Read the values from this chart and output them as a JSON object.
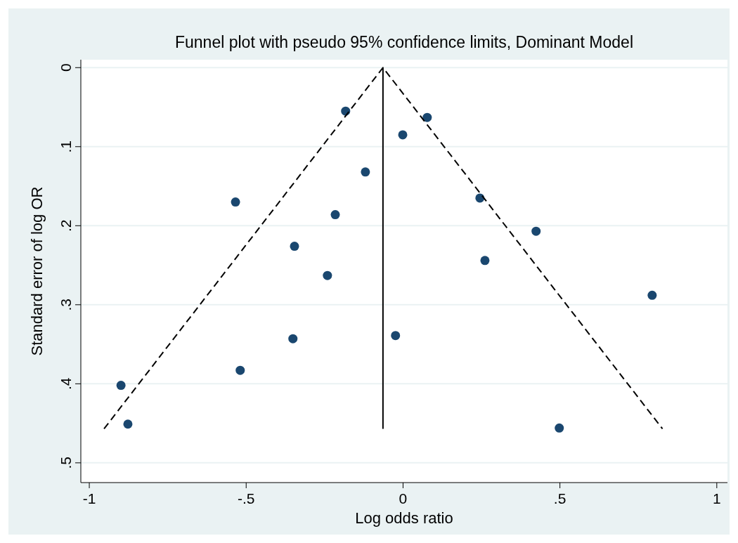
{
  "chart_data": {
    "type": "scatter",
    "title": "Funnel plot with pseudo 95% confidence limits, Dominant Model",
    "xlabel": "Log odds ratio",
    "ylabel": "Standard error of log OR",
    "xlim": [
      -1.027,
      1.034
    ],
    "ylim": [
      0.525,
      -0.01
    ],
    "xticks": [
      -1,
      {
        "value": -0.5,
        "label": "-.5"
      },
      0,
      {
        "value": 0.5,
        "label": ".5"
      },
      1
    ],
    "yticks": [
      0,
      {
        "value": 0.1,
        "label": ".1"
      },
      {
        "value": 0.2,
        "label": ".2"
      },
      {
        "value": 0.3,
        "label": ".3"
      },
      {
        "value": 0.4,
        "label": ".4"
      },
      {
        "value": 0.5,
        "label": ".5"
      }
    ],
    "grid": "y",
    "marker": "circle",
    "series": [
      {
        "color": "#1a476f",
        "x": [
          -0.183,
          0.077,
          -0.001,
          -0.12,
          -0.534,
          0.245,
          -0.216,
          0.424,
          -0.346,
          0.261,
          -0.241,
          0.794,
          -0.351,
          -0.024,
          -0.519,
          -0.899,
          -0.877,
          0.498
        ],
        "values": [
          0.055,
          0.063,
          0.085,
          0.132,
          0.17,
          0.165,
          0.186,
          0.207,
          0.226,
          0.244,
          0.263,
          0.288,
          0.343,
          0.339,
          0.383,
          0.402,
          0.451,
          0.456
        ]
      },
      {
        "type": "line",
        "color": "#000000",
        "line_style": "solid",
        "marker": "none",
        "x": [
          -0.064,
          -0.064
        ],
        "values": [
          0,
          0.457
        ]
      },
      {
        "type": "line",
        "color": "#000000",
        "line_style": "dashed",
        "marker": "none",
        "x": [
          -0.953,
          -0.064,
          0.827
        ],
        "values": [
          0.457,
          0,
          0.457
        ]
      }
    ]
  }
}
